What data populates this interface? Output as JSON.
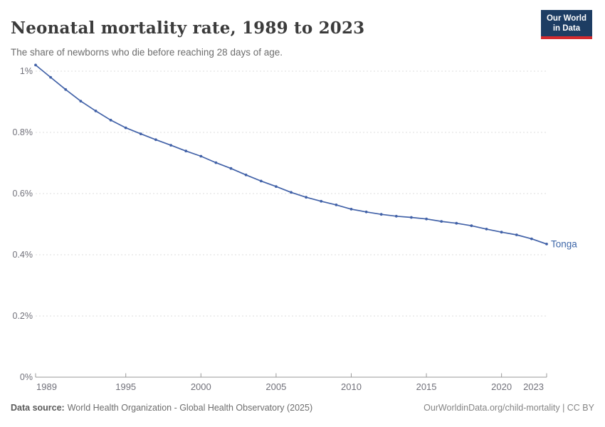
{
  "header": {
    "title": "Neonatal mortality rate, 1989 to 2023",
    "subtitle": "The share of newborns who die before reaching 28 days of age.",
    "logo": {
      "line1": "Our World",
      "line2": "in Data"
    }
  },
  "colors": {
    "line": "#4262a8",
    "entity_label": "#3d66a8",
    "logo_bg": "#1d3d63",
    "logo_red": "#d42b2f",
    "grid": "#dddddd",
    "axis": "#9a9a9a",
    "tick_text": "#71717a"
  },
  "chart_data": {
    "type": "line",
    "title": "Neonatal mortality rate, 1989 to 2023",
    "xlabel": "",
    "ylabel": "",
    "unit": "%",
    "xlim": [
      1989,
      2023
    ],
    "ylim": [
      0,
      1.02
    ],
    "grid": "horizontal-dashed",
    "legend_position": "entity-label-right-of-line",
    "x": [
      1989,
      1990,
      1991,
      1992,
      1993,
      1994,
      1995,
      1996,
      1997,
      1998,
      1999,
      2000,
      2001,
      2002,
      2003,
      2004,
      2005,
      2006,
      2007,
      2008,
      2009,
      2010,
      2011,
      2012,
      2013,
      2014,
      2015,
      2016,
      2017,
      2018,
      2019,
      2020,
      2021,
      2022,
      2023
    ],
    "series": [
      {
        "name": "Tonga",
        "color": "#4262a8",
        "values": [
          1.02,
          0.98,
          0.94,
          0.902,
          0.87,
          0.84,
          0.815,
          0.795,
          0.776,
          0.758,
          0.739,
          0.722,
          0.701,
          0.682,
          0.661,
          0.641,
          0.623,
          0.604,
          0.588,
          0.575,
          0.563,
          0.549,
          0.54,
          0.532,
          0.526,
          0.522,
          0.517,
          0.509,
          0.503,
          0.495,
          0.484,
          0.474,
          0.465,
          0.452,
          0.435
        ]
      }
    ],
    "x_tick_values": [
      1989,
      1995,
      2000,
      2005,
      2010,
      2015,
      2020,
      2023
    ],
    "x_tick_labels": [
      "1989",
      "1995",
      "2000",
      "2005",
      "2010",
      "2015",
      "2020",
      "2023"
    ],
    "y_tick_values": [
      0,
      0.2,
      0.4,
      0.6,
      0.8,
      1
    ],
    "y_tick_labels": [
      "0%",
      "0.2%",
      "0.4%",
      "0.6%",
      "0.8%",
      "1%"
    ]
  },
  "footer": {
    "source_label": "Data source:",
    "source_text": "World Health Organization - Global Health Observatory (2025)",
    "link_text": "OurWorldinData.org/child-mortality | CC BY"
  }
}
